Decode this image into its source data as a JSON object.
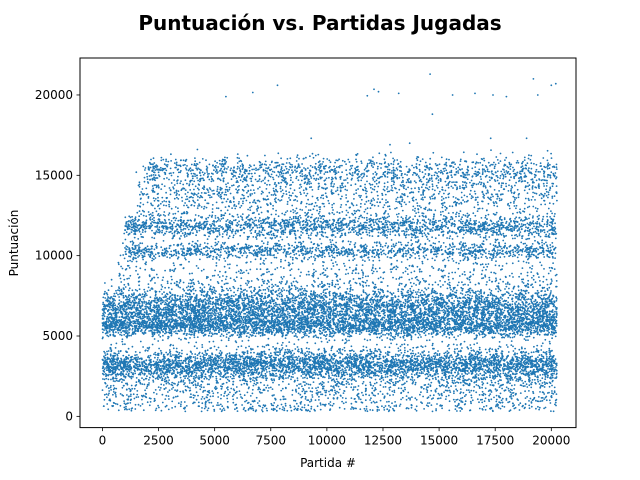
{
  "chart_data": {
    "type": "scatter",
    "title": "Puntuación vs.  Partidas Jugadas",
    "xlabel": "Partida #",
    "ylabel": "Puntuación",
    "xlim": [
      -1000,
      21100
    ],
    "ylim": [
      -700,
      22300
    ],
    "x_ticks": [
      0,
      2500,
      5000,
      7500,
      10000,
      12500,
      15000,
      17500,
      20000
    ],
    "x_tick_labels": [
      "0",
      "2500",
      "5000",
      "7500",
      "10000",
      "12500",
      "15000",
      "17500",
      "20000"
    ],
    "y_ticks": [
      0,
      5000,
      10000,
      15000,
      20000
    ],
    "y_tick_labels": [
      "0",
      "5000",
      "10000",
      "15000",
      "20000"
    ],
    "grid": false,
    "legend": "none",
    "marker_color": "#1f77b4",
    "x_range": [
      0,
      20250
    ],
    "point_count_estimate": 20000,
    "score_bands": [
      {
        "center": 2200,
        "spread": 1200,
        "x_start": 0,
        "share": 0.1
      },
      {
        "center": 3200,
        "spread": 450,
        "x_start": 0,
        "share": 0.18
      },
      {
        "center": 5600,
        "spread": 300,
        "x_start": 0,
        "share": 0.12
      },
      {
        "center": 6600,
        "spread": 700,
        "x_start": 0,
        "share": 0.26
      },
      {
        "center": 8500,
        "spread": 1500,
        "x_start": 700,
        "share": 0.06
      },
      {
        "center": 10300,
        "spread": 250,
        "x_start": 1000,
        "share": 0.06
      },
      {
        "center": 11800,
        "spread": 350,
        "x_start": 1000,
        "share": 0.09
      },
      {
        "center": 13800,
        "spread": 900,
        "x_start": 1500,
        "share": 0.07
      },
      {
        "center": 15300,
        "spread": 450,
        "x_start": 2000,
        "share": 0.05
      },
      {
        "center": 1000,
        "spread": 500,
        "x_start": 200,
        "share": 0.01
      }
    ],
    "outliers": [
      {
        "x": 5500,
        "y": 19900
      },
      {
        "x": 6700,
        "y": 20150
      },
      {
        "x": 7800,
        "y": 20600
      },
      {
        "x": 9300,
        "y": 17300
      },
      {
        "x": 11800,
        "y": 19950
      },
      {
        "x": 12100,
        "y": 20350
      },
      {
        "x": 12300,
        "y": 20200
      },
      {
        "x": 13200,
        "y": 20100
      },
      {
        "x": 14600,
        "y": 21300
      },
      {
        "x": 14700,
        "y": 18800
      },
      {
        "x": 15600,
        "y": 20000
      },
      {
        "x": 16600,
        "y": 20100
      },
      {
        "x": 17300,
        "y": 17300
      },
      {
        "x": 17400,
        "y": 20000
      },
      {
        "x": 18000,
        "y": 19900
      },
      {
        "x": 18900,
        "y": 17300
      },
      {
        "x": 19200,
        "y": 21000
      },
      {
        "x": 19400,
        "y": 20000
      },
      {
        "x": 20000,
        "y": 20600
      },
      {
        "x": 20200,
        "y": 20700
      }
    ]
  }
}
